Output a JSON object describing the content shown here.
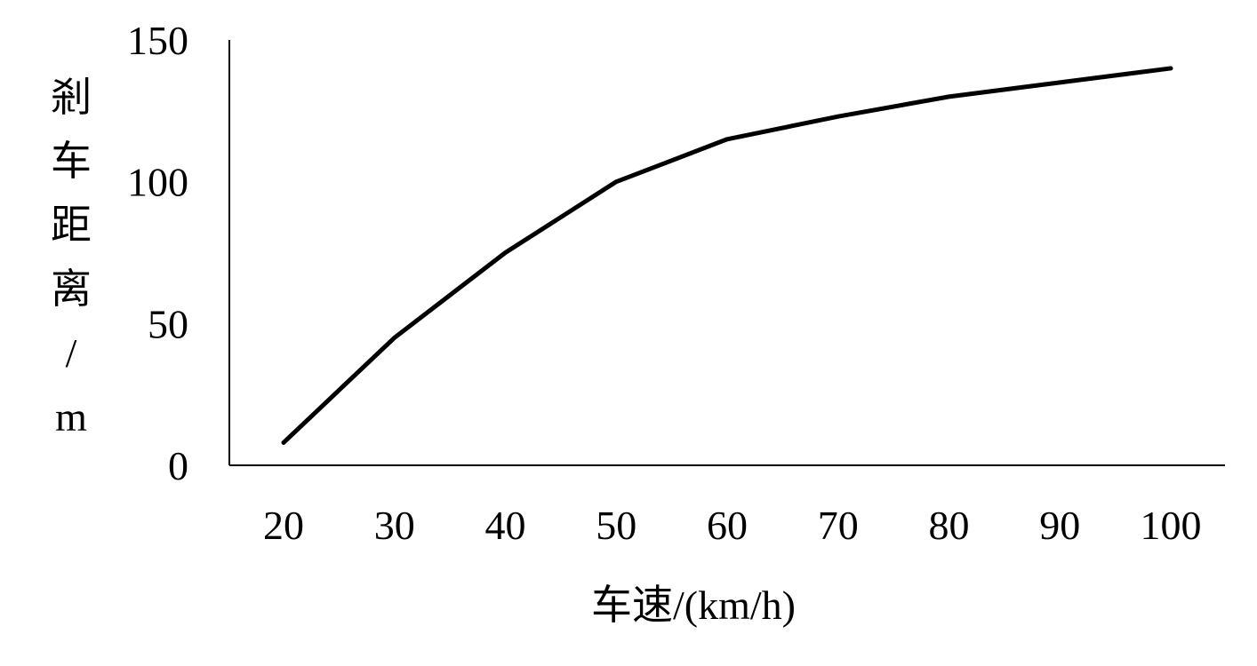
{
  "chart_data": {
    "type": "line",
    "title": "",
    "xlabel": "车速/(km/h)",
    "ylabel": "剎车距离/m",
    "x": [
      20,
      30,
      40,
      50,
      60,
      70,
      80,
      90,
      100
    ],
    "series": [
      {
        "values": [
          8,
          45,
          75,
          100,
          115,
          123,
          130,
          135,
          140
        ]
      }
    ],
    "y_ticks": [
      0,
      50,
      100,
      150
    ],
    "ylim": [
      0,
      150
    ],
    "grid": false,
    "line_color": "#000000"
  }
}
